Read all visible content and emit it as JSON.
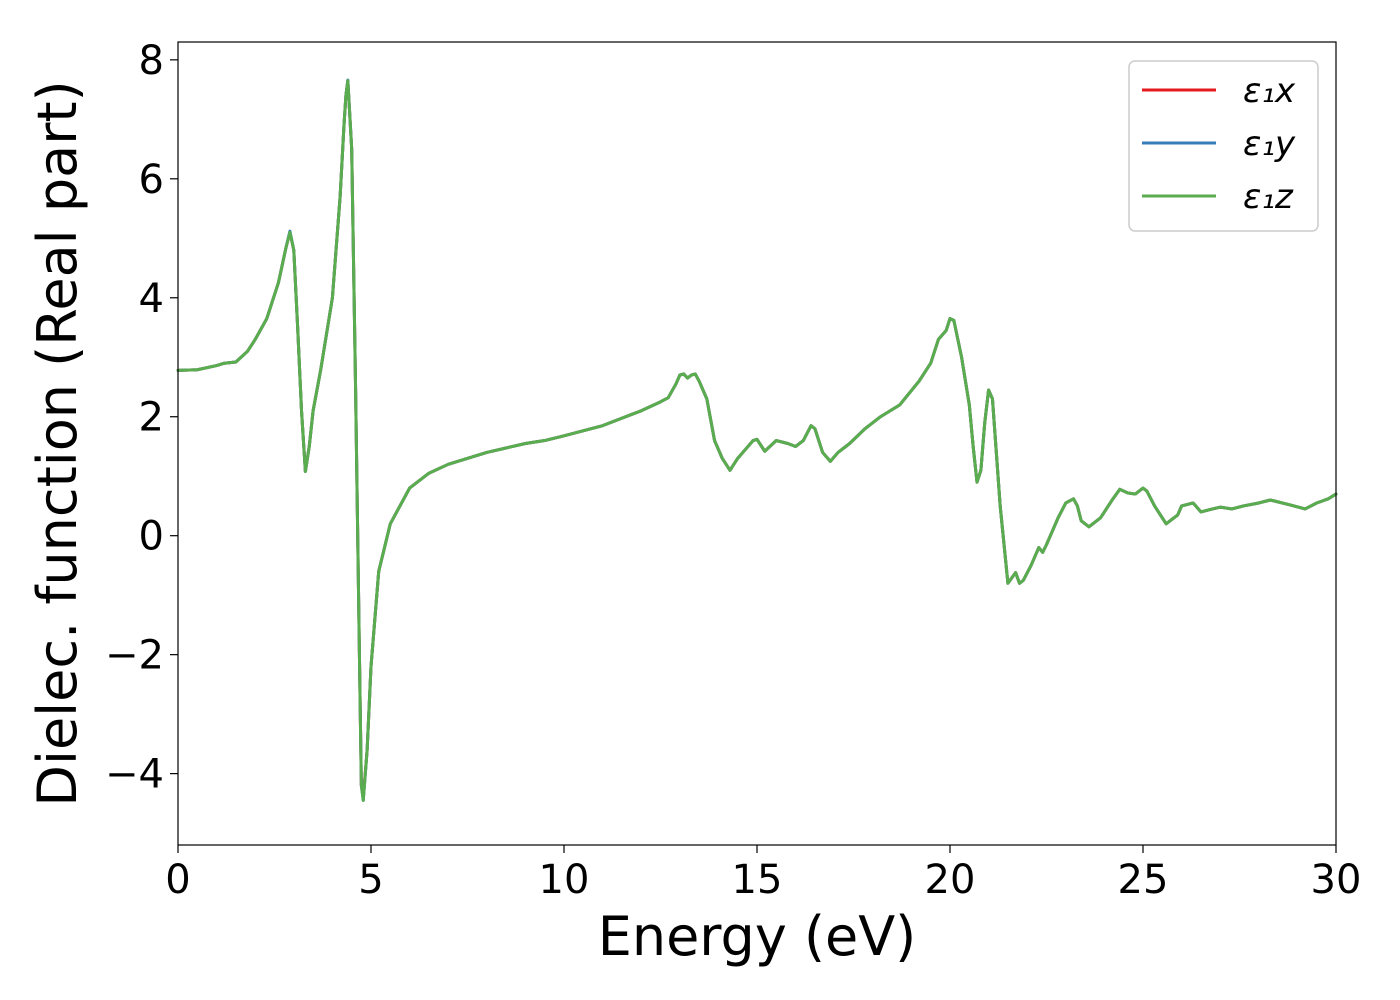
{
  "chart_data": {
    "type": "line",
    "xlabel": "Energy (eV)",
    "ylabel": "Dielec. function (Real part)",
    "xlim": [
      0,
      30
    ],
    "ylim": [
      -5.2,
      8.3
    ],
    "xticks": [
      0,
      5,
      10,
      15,
      20,
      25,
      30
    ],
    "xtick_labels": [
      "0",
      "5",
      "10",
      "15",
      "20",
      "25",
      "30"
    ],
    "yticks": [
      -4,
      -2,
      0,
      2,
      4,
      6,
      8
    ],
    "ytick_labels": [
      "−4",
      "−2",
      "0",
      "2",
      "4",
      "6",
      "8"
    ],
    "grid": false,
    "legend_position": "top-right",
    "series": [
      {
        "name": "ε₁x",
        "color": "#e41a1c",
        "x": [
          0,
          0.5,
          1.0,
          1.2,
          1.5,
          1.8,
          2.0,
          2.3,
          2.6,
          2.8,
          2.9,
          3.0,
          3.1,
          3.2,
          3.3,
          3.4,
          3.5,
          3.7,
          4.0,
          4.2,
          4.3,
          4.35,
          4.4,
          4.5,
          4.6,
          4.7,
          4.75,
          4.8,
          4.9,
          5.0,
          5.2,
          5.5,
          6.0,
          6.5,
          7.0,
          8.0,
          9.0,
          9.5,
          10.0,
          11.0,
          12.0,
          12.5,
          12.7,
          12.9,
          13.0,
          13.1,
          13.2,
          13.3,
          13.4,
          13.5,
          13.6,
          13.7,
          13.9,
          14.1,
          14.3,
          14.5,
          14.7,
          14.9,
          15.0,
          15.2,
          15.5,
          15.8,
          16.0,
          16.2,
          16.4,
          16.5,
          16.7,
          16.9,
          17.1,
          17.4,
          17.8,
          18.2,
          18.7,
          19.2,
          19.5,
          19.7,
          19.9,
          20.0,
          20.1,
          20.3,
          20.5,
          20.6,
          20.7,
          20.8,
          20.9,
          21.0,
          21.1,
          21.3,
          21.5,
          21.7,
          21.8,
          21.9,
          22.1,
          22.3,
          22.4,
          22.5,
          22.8,
          23.0,
          23.2,
          23.3,
          23.4,
          23.6,
          23.9,
          24.2,
          24.4,
          24.6,
          24.8,
          25.0,
          25.1,
          25.3,
          25.6,
          25.9,
          26.0,
          26.3,
          26.5,
          26.8,
          27.0,
          27.3,
          27.6,
          28.0,
          28.3,
          28.8,
          29.2,
          29.5,
          29.8,
          30.0
        ],
        "y": [
          2.78,
          2.79,
          2.86,
          2.9,
          2.92,
          3.1,
          3.3,
          3.65,
          4.25,
          4.85,
          5.1,
          4.8,
          3.5,
          2.1,
          1.08,
          1.5,
          2.1,
          2.8,
          4.0,
          5.7,
          6.9,
          7.4,
          7.65,
          6.5,
          2.5,
          -2.0,
          -4.2,
          -4.4,
          -3.6,
          -2.2,
          -0.6,
          0.2,
          0.8,
          1.05,
          1.2,
          1.4,
          1.55,
          1.6,
          1.68,
          1.85,
          2.1,
          2.25,
          2.32,
          2.55,
          2.7,
          2.72,
          2.65,
          2.7,
          2.72,
          2.6,
          2.45,
          2.3,
          1.6,
          1.3,
          1.1,
          1.3,
          1.45,
          1.6,
          1.62,
          1.42,
          1.6,
          1.55,
          1.5,
          1.6,
          1.85,
          1.8,
          1.4,
          1.25,
          1.4,
          1.55,
          1.8,
          2.0,
          2.2,
          2.6,
          2.9,
          3.3,
          3.45,
          3.65,
          3.62,
          3.0,
          2.2,
          1.5,
          0.9,
          1.1,
          1.9,
          2.45,
          2.3,
          0.5,
          -0.8,
          -0.62,
          -0.8,
          -0.75,
          -0.5,
          -0.2,
          -0.28,
          -0.15,
          0.3,
          0.55,
          0.62,
          0.5,
          0.25,
          0.15,
          0.3,
          0.6,
          0.78,
          0.72,
          0.7,
          0.8,
          0.75,
          0.5,
          0.2,
          0.35,
          0.5,
          0.55,
          0.4,
          0.45,
          0.48,
          0.45,
          0.5,
          0.55,
          0.6,
          0.52,
          0.45,
          0.55,
          0.62,
          0.7
        ]
      },
      {
        "name": "ε₁y",
        "color": "#377eb8",
        "x": [
          0,
          0.5,
          1.0,
          1.2,
          1.5,
          1.8,
          2.0,
          2.3,
          2.6,
          2.8,
          2.9,
          3.0,
          3.1,
          3.2,
          3.3,
          3.4,
          3.5,
          3.7,
          4.0,
          4.2,
          4.3,
          4.35,
          4.4,
          4.5,
          4.6,
          4.7,
          4.75,
          4.8,
          4.9,
          5.0,
          5.2,
          5.5,
          6.0,
          6.5,
          7.0,
          8.0,
          9.0,
          9.5,
          10.0,
          11.0,
          12.0,
          12.5,
          12.7,
          12.9,
          13.0,
          13.1,
          13.2,
          13.3,
          13.4,
          13.5,
          13.6,
          13.7,
          13.9,
          14.1,
          14.3,
          14.5,
          14.7,
          14.9,
          15.0,
          15.2,
          15.5,
          15.8,
          16.0,
          16.2,
          16.4,
          16.5,
          16.7,
          16.9,
          17.1,
          17.4,
          17.8,
          18.2,
          18.7,
          19.2,
          19.5,
          19.7,
          19.9,
          20.0,
          20.1,
          20.3,
          20.5,
          20.6,
          20.7,
          20.8,
          20.9,
          21.0,
          21.1,
          21.3,
          21.5,
          21.7,
          21.8,
          21.9,
          22.1,
          22.3,
          22.4,
          22.5,
          22.8,
          23.0,
          23.2,
          23.3,
          23.4,
          23.6,
          23.9,
          24.2,
          24.4,
          24.6,
          24.8,
          25.0,
          25.1,
          25.3,
          25.6,
          25.9,
          26.0,
          26.3,
          26.5,
          26.8,
          27.0,
          27.3,
          27.6,
          28.0,
          28.3,
          28.8,
          29.2,
          29.5,
          29.8,
          30.0
        ],
        "y": [
          2.78,
          2.79,
          2.86,
          2.9,
          2.92,
          3.1,
          3.3,
          3.65,
          4.25,
          4.85,
          5.12,
          4.8,
          3.5,
          2.1,
          1.08,
          1.5,
          2.1,
          2.8,
          4.0,
          5.7,
          6.9,
          7.4,
          7.66,
          6.5,
          2.5,
          -2.0,
          -4.2,
          -4.45,
          -3.6,
          -2.2,
          -0.6,
          0.2,
          0.8,
          1.05,
          1.2,
          1.4,
          1.55,
          1.6,
          1.68,
          1.85,
          2.1,
          2.25,
          2.32,
          2.55,
          2.7,
          2.72,
          2.65,
          2.7,
          2.72,
          2.6,
          2.45,
          2.3,
          1.6,
          1.3,
          1.1,
          1.3,
          1.45,
          1.6,
          1.62,
          1.42,
          1.6,
          1.55,
          1.5,
          1.6,
          1.85,
          1.8,
          1.4,
          1.25,
          1.4,
          1.55,
          1.8,
          2.0,
          2.2,
          2.6,
          2.9,
          3.3,
          3.45,
          3.65,
          3.62,
          3.0,
          2.2,
          1.5,
          0.9,
          1.1,
          1.9,
          2.45,
          2.3,
          0.5,
          -0.8,
          -0.62,
          -0.8,
          -0.75,
          -0.5,
          -0.2,
          -0.28,
          -0.15,
          0.3,
          0.55,
          0.62,
          0.5,
          0.25,
          0.15,
          0.3,
          0.6,
          0.78,
          0.72,
          0.7,
          0.8,
          0.75,
          0.5,
          0.2,
          0.35,
          0.5,
          0.55,
          0.4,
          0.45,
          0.48,
          0.45,
          0.5,
          0.55,
          0.6,
          0.52,
          0.45,
          0.55,
          0.62,
          0.7
        ]
      },
      {
        "name": "ε₁z",
        "color": "#5aad4e",
        "x": [
          0,
          0.5,
          1.0,
          1.2,
          1.5,
          1.8,
          2.0,
          2.3,
          2.6,
          2.8,
          2.9,
          3.0,
          3.1,
          3.2,
          3.3,
          3.4,
          3.5,
          3.7,
          4.0,
          4.2,
          4.3,
          4.35,
          4.4,
          4.5,
          4.6,
          4.7,
          4.75,
          4.8,
          4.9,
          5.0,
          5.2,
          5.5,
          6.0,
          6.5,
          7.0,
          8.0,
          9.0,
          9.5,
          10.0,
          11.0,
          12.0,
          12.5,
          12.7,
          12.9,
          13.0,
          13.1,
          13.2,
          13.3,
          13.4,
          13.5,
          13.6,
          13.7,
          13.9,
          14.1,
          14.3,
          14.5,
          14.7,
          14.9,
          15.0,
          15.2,
          15.5,
          15.8,
          16.0,
          16.2,
          16.4,
          16.5,
          16.7,
          16.9,
          17.1,
          17.4,
          17.8,
          18.2,
          18.7,
          19.2,
          19.5,
          19.7,
          19.9,
          20.0,
          20.1,
          20.3,
          20.5,
          20.6,
          20.7,
          20.8,
          20.9,
          21.0,
          21.1,
          21.3,
          21.5,
          21.7,
          21.8,
          21.9,
          22.1,
          22.3,
          22.4,
          22.5,
          22.8,
          23.0,
          23.2,
          23.3,
          23.4,
          23.6,
          23.9,
          24.2,
          24.4,
          24.6,
          24.8,
          25.0,
          25.1,
          25.3,
          25.6,
          25.9,
          26.0,
          26.3,
          26.5,
          26.8,
          27.0,
          27.3,
          27.6,
          28.0,
          28.3,
          28.8,
          29.2,
          29.5,
          29.8,
          30.0
        ],
        "y": [
          2.78,
          2.79,
          2.86,
          2.9,
          2.92,
          3.1,
          3.3,
          3.65,
          4.25,
          4.85,
          5.1,
          4.8,
          3.5,
          2.1,
          1.08,
          1.5,
          2.1,
          2.8,
          4.0,
          5.7,
          6.9,
          7.4,
          7.65,
          6.5,
          2.5,
          -2.0,
          -4.2,
          -4.45,
          -3.6,
          -2.2,
          -0.6,
          0.2,
          0.8,
          1.05,
          1.2,
          1.4,
          1.55,
          1.6,
          1.68,
          1.85,
          2.1,
          2.25,
          2.32,
          2.55,
          2.7,
          2.72,
          2.65,
          2.7,
          2.72,
          2.6,
          2.45,
          2.3,
          1.6,
          1.3,
          1.1,
          1.3,
          1.45,
          1.6,
          1.62,
          1.42,
          1.6,
          1.55,
          1.5,
          1.6,
          1.85,
          1.8,
          1.4,
          1.25,
          1.4,
          1.55,
          1.8,
          2.0,
          2.2,
          2.6,
          2.9,
          3.3,
          3.45,
          3.65,
          3.62,
          3.0,
          2.2,
          1.5,
          0.9,
          1.1,
          1.9,
          2.45,
          2.3,
          0.5,
          -0.8,
          -0.62,
          -0.8,
          -0.75,
          -0.5,
          -0.2,
          -0.28,
          -0.15,
          0.3,
          0.55,
          0.62,
          0.5,
          0.25,
          0.15,
          0.3,
          0.6,
          0.78,
          0.72,
          0.7,
          0.8,
          0.75,
          0.5,
          0.2,
          0.35,
          0.5,
          0.55,
          0.4,
          0.45,
          0.48,
          0.45,
          0.5,
          0.55,
          0.6,
          0.52,
          0.45,
          0.55,
          0.62,
          0.7
        ]
      }
    ]
  }
}
